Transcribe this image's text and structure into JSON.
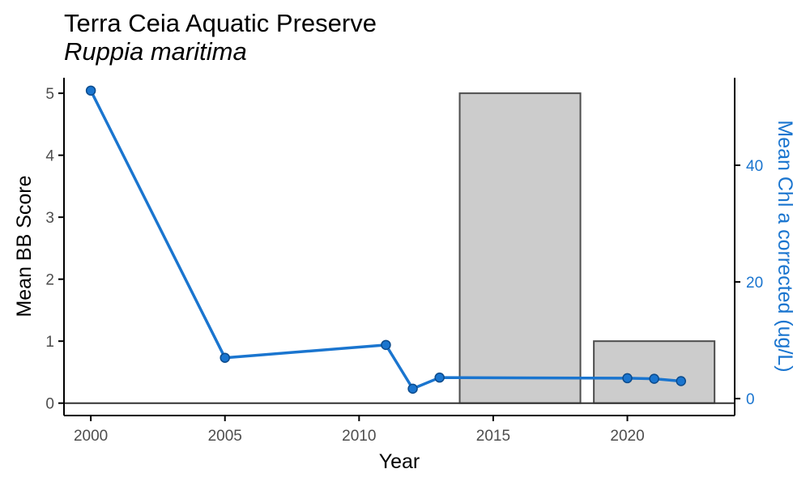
{
  "chart_data": {
    "type": "bar",
    "title": "Terra Ceia Aquatic Preserve",
    "subtitle": "Ruppia maritima",
    "xlabel": "Year",
    "ylabel": "Mean BB Score",
    "y2label": "Mean Chl a corrected (ug/L)",
    "xlim": [
      1999,
      2024
    ],
    "ylim": [
      -0.2,
      5.25
    ],
    "y2lim": [
      -2.9,
      55
    ],
    "x_ticks": [
      2000,
      2005,
      2010,
      2015,
      2020
    ],
    "y_ticks": [
      0,
      1,
      2,
      3,
      4,
      5
    ],
    "y2_ticks": [
      0,
      20,
      40
    ],
    "bars": [
      {
        "x_start": 2013.75,
        "x_end": 2018.25,
        "value": 5
      },
      {
        "x_start": 2018.75,
        "x_end": 2023.25,
        "value": 1
      }
    ],
    "series": [
      {
        "axis": "right",
        "type": "line",
        "x": [
          2000,
          2005,
          2011,
          2012,
          2013,
          2020,
          2021,
          2022
        ],
        "values": [
          52.8,
          7.0,
          9.2,
          1.7,
          3.6,
          3.5,
          3.4,
          3.0
        ]
      }
    ],
    "colors": {
      "bar_fill": "#cccccc",
      "bar_stroke": "#4d4d4d",
      "line": "#1a75cf",
      "point_fill": "#1a75cf",
      "point_stroke": "#0c4b8c",
      "axis": "#000000",
      "zero_line": "#333333",
      "tick_label": "#4d4d4d",
      "secondary_axis": "#1a75cf"
    },
    "grid": false,
    "legend": "none"
  }
}
